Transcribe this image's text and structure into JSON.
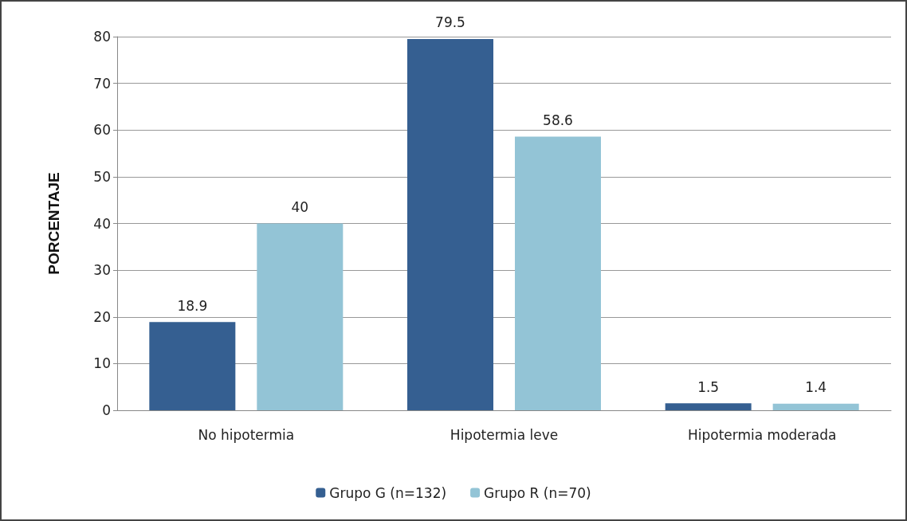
{
  "chart_data": {
    "type": "bar",
    "ylabel": "PORCENTAJE",
    "categories": [
      "No hipotermia",
      "Hipotermia leve",
      "Hipotermia moderada"
    ],
    "series": [
      {
        "name": "Grupo G (n=132)",
        "color": "#355f91",
        "values": [
          18.9,
          79.5,
          1.5
        ]
      },
      {
        "name": "Grupo R (n=70)",
        "color": "#93c4d6",
        "values": [
          40,
          58.6,
          1.4
        ]
      }
    ],
    "ylim": [
      0,
      80
    ],
    "yticks": [
      0,
      10,
      20,
      30,
      40,
      50,
      60,
      70,
      80
    ],
    "grid": "y",
    "legend": "bottom",
    "data_labels": true
  }
}
